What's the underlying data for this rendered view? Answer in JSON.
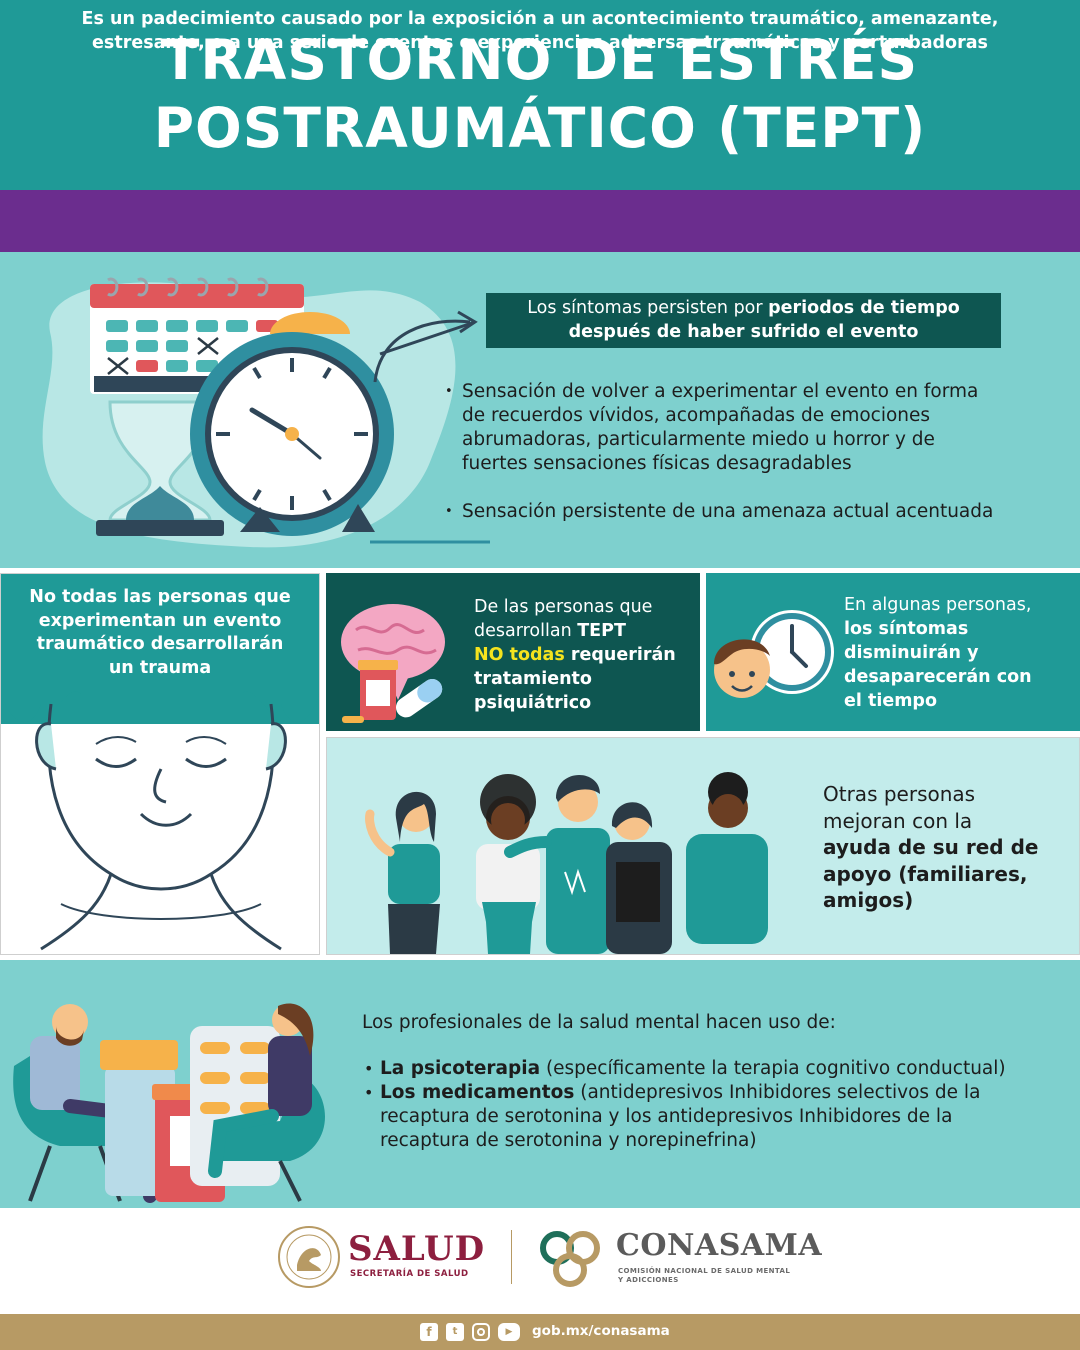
{
  "header": {
    "title_line1": "TRASTORNO DE ESTRÉS",
    "title_line2": "POSTRAUMÁTICO (TEPT)"
  },
  "intro": {
    "line1": "Es un padecimiento causado por la exposición a un acontecimiento traumático, amenazante,",
    "line2": "estresante, o a una serie de eventos o experiencias adversas traumáticas y perturbadoras"
  },
  "symptoms": {
    "callout_pre": "Los síntomas persisten por ",
    "callout_bold1": "periodos de tiempo",
    "callout_bold2": "después de haber sufrido el evento",
    "bullet1_l1": "Sensación de volver a experimentar el evento en forma",
    "bullet1_l2": "de recuerdos vívidos, acompañadas de emociones",
    "bullet1_l3": "abrumadoras, particularmente miedo u horror y de",
    "bullet1_l4": "fuertes sensaciones físicas desagradables",
    "bullet2": "Sensación persistente de una amenaza actual acentuada"
  },
  "panels": {
    "left_l1": "No todas las personas que",
    "left_l2": "experimentan un evento",
    "left_l3": "traumático desarrollarán",
    "left_l4": "un trauma",
    "mid_l1": "De las personas que",
    "mid_l2_pre": "desarrollan ",
    "mid_l2_bold": "TEPT",
    "mid_l3_yellow": "NO todas",
    "mid_l3_bold": " requerirán",
    "mid_l4": "tratamiento",
    "mid_l5": "psiquiátrico",
    "right_l1": "En algunas personas,",
    "right_l2": "los síntomas",
    "right_l3": "disminuirán y",
    "right_l4": "desaparecerán con",
    "right_l5": "el tiempo",
    "people_l1": "Otras personas",
    "people_l2": "mejoran con la",
    "people_l3": "ayuda de su red de",
    "people_l4": "apoyo (familiares,",
    "people_l5": "amigos)"
  },
  "professionals": {
    "intro": "Los profesionales de la salud mental hacen uso de:",
    "item1_bold": "La psicoterapia",
    "item1_rest": " (específicamente la terapia cognitivo conductual)",
    "item2_bold": "Los medicamentos",
    "item2_rest_l1": " (antidepresivos Inhibidores selectivos de la",
    "item2_rest_l2": "recaptura de serotonina y los antidepresivos Inhibidores de la",
    "item2_rest_l3": "recaptura de serotonina y norepinefrina)"
  },
  "logos": {
    "salud": "SALUD",
    "salud_sub": "SECRETARÍA DE SALUD",
    "conasama": "CONASAMA",
    "conasama_sub_l1": "COMISIÓN NACIONAL DE SALUD MENTAL",
    "conasama_sub_l2": "Y ADICCIONES"
  },
  "footer": {
    "url": "gob.mx/conasama",
    "icons": [
      "facebook-icon",
      "twitter-icon",
      "instagram-icon",
      "youtube-icon"
    ]
  },
  "colors": {
    "teal": "#1f9a97",
    "dark_teal": "#0e5651",
    "light_teal": "#7ed0ce",
    "purple": "#6b2d8e",
    "gold": "#b79a64",
    "maroon": "#8d1f3f",
    "yellow": "#f5e31e"
  }
}
